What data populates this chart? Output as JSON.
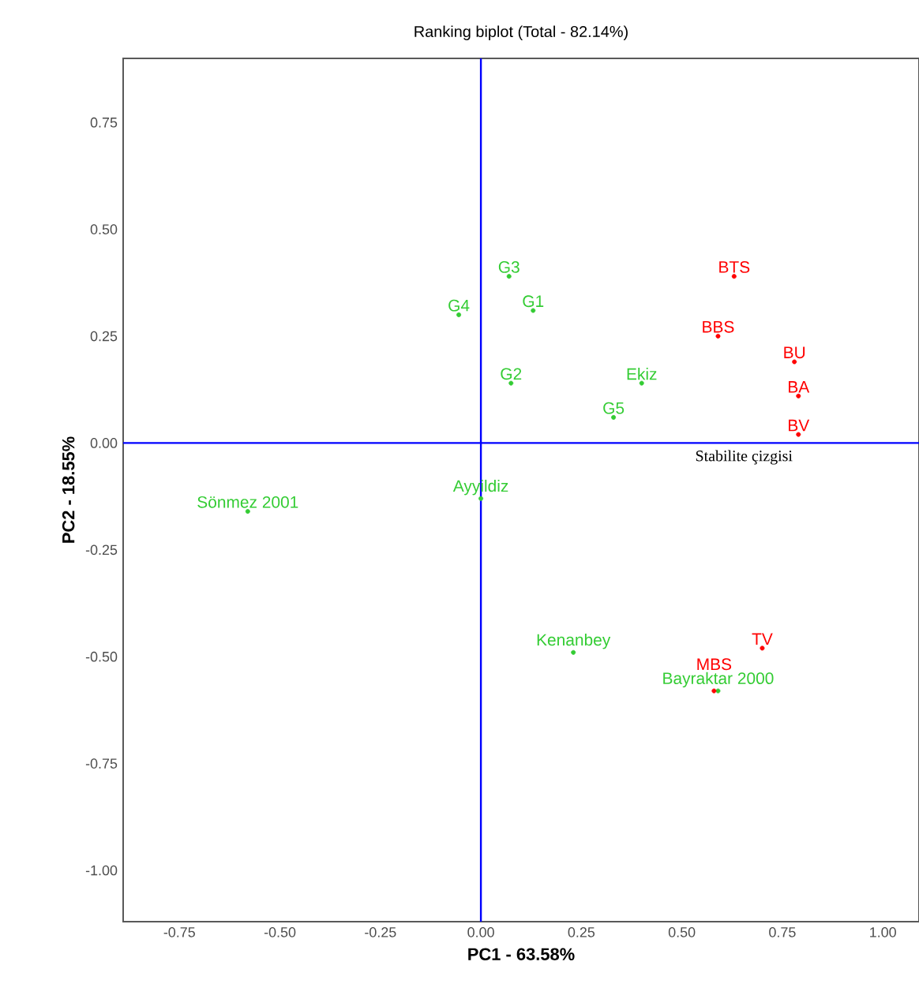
{
  "chart_data": {
    "type": "scatter",
    "title": "Ranking biplot (Total - 82.14%)",
    "xlabel": "PC1 - 63.58%",
    "ylabel": "PC2 - 18.55%",
    "xlim": [
      -0.89,
      1.09
    ],
    "ylim": [
      -1.12,
      0.9
    ],
    "xticks": [
      {
        "value": -0.75,
        "label": "-0.75"
      },
      {
        "value": -0.5,
        "label": "-0.50"
      },
      {
        "value": -0.25,
        "label": "-0.25"
      },
      {
        "value": 0,
        "label": "0.00"
      },
      {
        "value": 0.25,
        "label": "0.25"
      },
      {
        "value": 0.5,
        "label": "0.50"
      },
      {
        "value": 0.75,
        "label": "0.75"
      },
      {
        "value": 1.0,
        "label": "1.00"
      }
    ],
    "yticks": [
      {
        "value": -1.0,
        "label": "-1.00"
      },
      {
        "value": -0.75,
        "label": "-0.75"
      },
      {
        "value": -0.5,
        "label": "-0.50"
      },
      {
        "value": -0.25,
        "label": "-0.25"
      },
      {
        "value": 0,
        "label": "0.00"
      },
      {
        "value": 0.25,
        "label": "0.25"
      },
      {
        "value": 0.5,
        "label": "0.50"
      },
      {
        "value": 0.75,
        "label": "0.75"
      }
    ],
    "marker": "circle",
    "series": [
      {
        "color": "#33cc33",
        "x": [
          0.07,
          -0.055,
          0.13,
          0.075,
          0.4,
          0.33,
          0.0,
          -0.58,
          0.23,
          0.59
        ],
        "values": [
          0.39,
          0.3,
          0.31,
          0.14,
          0.14,
          0.06,
          -0.13,
          -0.16,
          -0.49,
          -0.58
        ],
        "value_labels": [
          "G3",
          "G4",
          "G1",
          "G2",
          "Ekiz",
          "G5",
          "Ayyildiz",
          "Sönmez 2001",
          "Kenanbey",
          "Bayraktar 2000"
        ]
      },
      {
        "color": "#ff0000",
        "x": [
          0.63,
          0.59,
          0.78,
          0.79,
          0.79,
          0.7,
          0.58
        ],
        "values": [
          0.39,
          0.25,
          0.19,
          0.11,
          0.02,
          -0.48,
          -0.58
        ],
        "value_labels": [
          "BTS",
          "BBS",
          "BU",
          "BA",
          "BV",
          "TV",
          "MBS"
        ]
      }
    ],
    "ref_lines": [
      {
        "axis": "y",
        "value": 0,
        "label": "Stabilite çizgisi",
        "color": "#0000ff"
      },
      {
        "axis": "x",
        "value": 0,
        "color": "#0000ff"
      }
    ]
  }
}
